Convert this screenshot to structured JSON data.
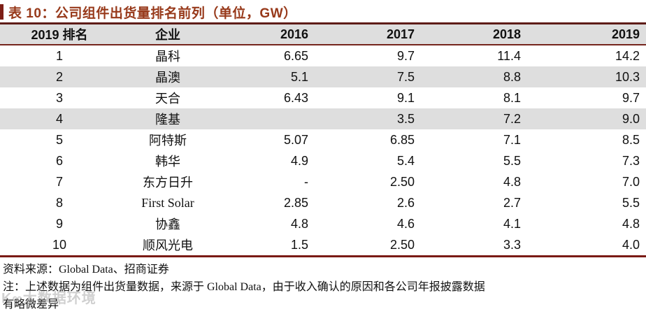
{
  "title": "表 10：公司组件出货量排名前列（单位，GW）",
  "colors": {
    "title_text": "#97391a",
    "accent_bar": "#7d1f16",
    "table_top_border": "#5e1c18",
    "table_bottom_border": "#7a1a14",
    "header_underline": "#76261d",
    "stripe_gray": "#dedede",
    "body_text": "#111111"
  },
  "chart_data": {
    "type": "table",
    "title": "表 10：公司组件出货量排名前列（单位，GW）",
    "unit": "GW",
    "columns": [
      "2019 排名",
      "企业",
      "2016",
      "2017",
      "2018",
      "2019"
    ],
    "rows": [
      [
        "1",
        "晶科",
        "6.65",
        "9.7",
        "11.4",
        "14.2"
      ],
      [
        "2",
        "晶澳",
        "5.1",
        "7.5",
        "8.8",
        "10.3"
      ],
      [
        "3",
        "天合",
        "6.43",
        "9.1",
        "8.1",
        "9.7"
      ],
      [
        "4",
        "隆基",
        "",
        "3.5",
        "7.2",
        "9.0"
      ],
      [
        "5",
        "阿特斯",
        "5.07",
        "6.85",
        "7.1",
        "8.5"
      ],
      [
        "6",
        "韩华",
        "4.9",
        "5.4",
        "5.5",
        "7.3"
      ],
      [
        "7",
        "东方日升",
        "-",
        "2.50",
        "4.8",
        "7.0"
      ],
      [
        "8",
        "First Solar",
        "2.85",
        "2.6",
        "2.7",
        "5.5"
      ],
      [
        "9",
        "协鑫",
        "4.8",
        "4.6",
        "4.1",
        "4.8"
      ],
      [
        "10",
        "顺风光电",
        "1.5",
        "2.50",
        "3.3",
        "4.0"
      ]
    ],
    "gray_row_indices": [
      1,
      3
    ]
  },
  "footer": {
    "source": "资料来源：Global Data、招商证券",
    "note_line1": "注：上述数据为组件出货量数据，来源于 Global Data，由于收入确认的原因和各公司年报披露数据",
    "note_line2": "有略微差异"
  },
  "watermark": {
    "text": "K∞大数据环境"
  }
}
